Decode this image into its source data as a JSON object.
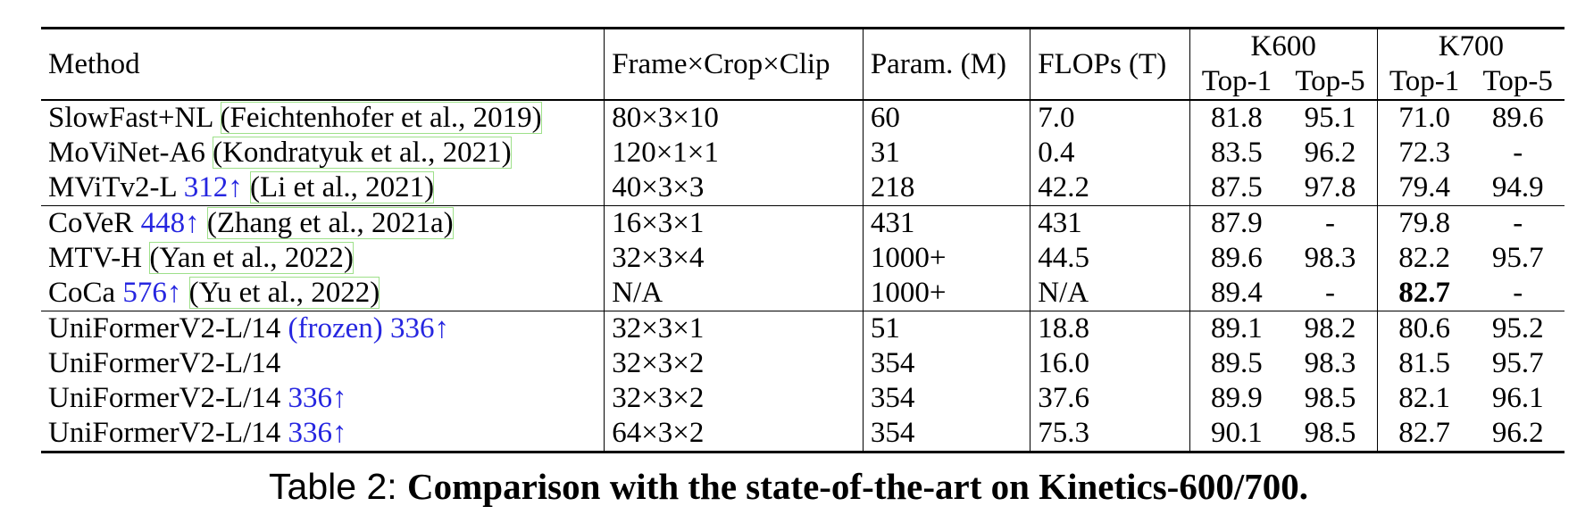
{
  "table": {
    "headers": {
      "method": "Method",
      "frame": "Frame×Crop×Clip",
      "param": "Param. (M)",
      "flops": "FLOPs (T)",
      "k600": "K600",
      "k700": "K700",
      "top1": "Top-1",
      "top5": "Top-5"
    },
    "groups": [
      [
        {
          "name": "SlowFast+NL ",
          "blue": "",
          "cite": "(Feichtenhofer et al., 2019)",
          "frame": "80×3×10",
          "param": "60",
          "flops": "7.0",
          "k600_top1": "81.8",
          "k600_top5": "95.1",
          "k700_top1": "71.0",
          "k700_top5": "89.6"
        },
        {
          "name": "MoViNet-A6 ",
          "blue": "",
          "cite": "(Kondratyuk et al., 2021)",
          "frame": "120×1×1",
          "param": "31",
          "flops": "0.4",
          "k600_top1": "83.5",
          "k600_top5": "96.2",
          "k700_top1": "72.3",
          "k700_top5": "-"
        },
        {
          "name": "MViTv2-L ",
          "blue": "312↑",
          "cite": "(Li et al., 2021)",
          "frame": "40×3×3",
          "param": "218",
          "flops": "42.2",
          "k600_top1": "87.5",
          "k600_top5": "97.8",
          "k700_top1": "79.4",
          "k700_top5": "94.9"
        }
      ],
      [
        {
          "name": "CoVeR ",
          "blue": "448↑",
          "cite": "(Zhang et al., 2021a)",
          "frame": "16×3×1",
          "param": "431",
          "flops": "431",
          "k600_top1": "87.9",
          "k600_top5": "-",
          "k700_top1": "79.8",
          "k700_top5": "-"
        },
        {
          "name": "MTV-H ",
          "blue": "",
          "cite": "(Yan et al., 2022)",
          "frame": "32×3×4",
          "param": "1000+",
          "flops": "44.5",
          "k600_top1": "89.6",
          "k600_top5": "98.3",
          "k700_top1": "82.2",
          "k700_top5": "95.7"
        },
        {
          "name": "CoCa ",
          "blue": "576↑",
          "cite": "(Yu et al., 2022)",
          "frame": "N/A",
          "param": "1000+",
          "flops": "N/A",
          "k600_top1": "89.4",
          "k600_top5": "-",
          "k700_top1": "82.7",
          "k700_top5": "-"
        }
      ],
      [
        {
          "name": "UniFormerV2-L/14 ",
          "blue": "(frozen) 336↑",
          "cite": "",
          "frame": "32×3×1",
          "param": "51",
          "flops": "18.8",
          "k600_top1": "89.1",
          "k600_top5": "98.2",
          "k700_top1": "80.6",
          "k700_top5": "95.2"
        },
        {
          "name": "UniFormerV2-L/14",
          "blue": "",
          "cite": "",
          "frame": "32×3×2",
          "param": "354",
          "flops": "16.0",
          "k600_top1": "89.5",
          "k600_top5": "98.3",
          "k700_top1": "81.5",
          "k700_top5": "95.7"
        },
        {
          "name": "UniFormerV2-L/14 ",
          "blue": "336↑",
          "cite": "",
          "frame": "32×3×2",
          "param": "354",
          "flops": "37.6",
          "k600_top1": "89.9",
          "k600_top5": "98.5",
          "k700_top1": "82.1",
          "k700_top5": "96.1"
        },
        {
          "name": "UniFormerV2-L/14 ",
          "blue": "336↑",
          "cite": "",
          "frame": "64×3×2",
          "param": "354",
          "flops": "75.3",
          "k600_top1": "90.1",
          "k600_top5": "98.5",
          "k700_top1": "82.7",
          "k700_top5": "96.2"
        }
      ]
    ],
    "bold_cells": [
      "2.5.k600_top1",
      "2.5.k600_top5",
      "1.2.k700_top1",
      "2.5.k700_top1",
      "2.5.k700_top5"
    ]
  },
  "caption": {
    "label": "Table 2: ",
    "text": "Comparison with the state-of-the-art on Kinetics-600/700."
  }
}
